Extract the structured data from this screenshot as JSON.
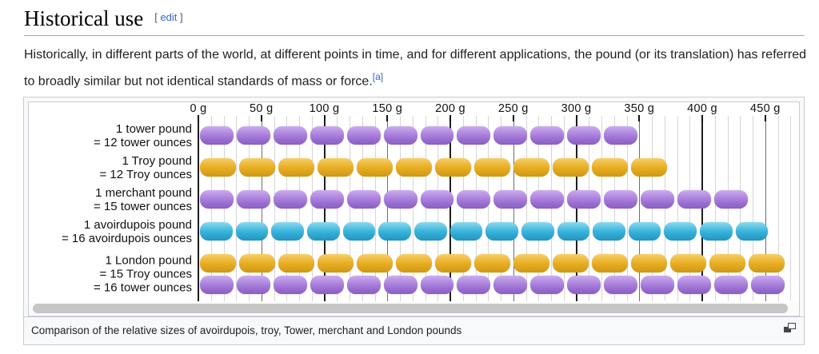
{
  "heading": {
    "title": "Historical use",
    "edit_open": "[ ",
    "edit_label": "edit",
    "edit_close": " ]"
  },
  "paragraph": {
    "text": "Historically, in different parts of the world, at different points in time, and for different applications, the pound (or its translation) has referred to broadly similar but not identical standards of mass or force.",
    "footnote": "[a]"
  },
  "figure": {
    "caption": "Comparison of the relative sizes of avoirdupois, troy, Tower, merchant and London pounds",
    "expand_icon": "expand-icon"
  },
  "chart_data": {
    "type": "bar",
    "orientation": "horizontal",
    "title": "Comparison of the relative sizes of avoirdupois, troy, Tower, merchant and London pounds",
    "unit": "g",
    "x_axis": {
      "tick_labels": [
        "0 g",
        "50 g",
        "100 g",
        "150 g",
        "200 g",
        "250 g",
        "300 g",
        "350 g",
        "400 g",
        "450 g"
      ],
      "tick_values": [
        0,
        50,
        100,
        150,
        200,
        250,
        300,
        350,
        400,
        450
      ],
      "minor_gridline_step": 10,
      "max_gridline": 470,
      "range": [
        0,
        477
      ]
    },
    "rows": [
      {
        "label_lines": [
          "1 tower pound",
          "= 12 tower ounces"
        ],
        "bars": [
          {
            "segment_count": 12,
            "segment_grams": 29.16,
            "color": "purple"
          }
        ],
        "total_grams": 349.9
      },
      {
        "label_lines": [
          "1 Troy pound",
          "= 12 Troy ounces"
        ],
        "bars": [
          {
            "segment_count": 12,
            "segment_grams": 31.1,
            "color": "gold"
          }
        ],
        "total_grams": 373.2
      },
      {
        "label_lines": [
          "1 merchant pound",
          "= 15 tower ounces"
        ],
        "bars": [
          {
            "segment_count": 15,
            "segment_grams": 29.16,
            "color": "purple"
          }
        ],
        "total_grams": 437.4
      },
      {
        "label_lines": [
          "1 avoirdupois pound",
          "= 16 avoirdupois ounces"
        ],
        "bars": [
          {
            "segment_count": 16,
            "segment_grams": 28.35,
            "color": "blue"
          }
        ],
        "total_grams": 453.6
      },
      {
        "label_lines": [
          "1 London pound",
          "= 15 Troy ounces",
          "= 16 tower ounces"
        ],
        "bars": [
          {
            "segment_count": 15,
            "segment_grams": 31.1,
            "color": "gold"
          },
          {
            "segment_count": 16,
            "segment_grams": 29.16,
            "color": "purple"
          }
        ],
        "total_grams": 466.6
      }
    ],
    "colors": {
      "purple": "#a87fd9",
      "gold": "#e8ad22",
      "blue": "#38b7de"
    },
    "grid": true,
    "legend_position": "none"
  }
}
